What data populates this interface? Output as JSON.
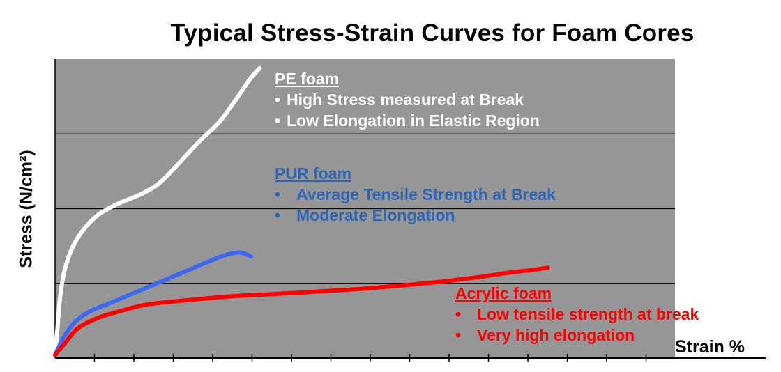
{
  "chart_data": {
    "type": "line",
    "title": "Typical Stress-Strain Curves for Foam Cores",
    "xlabel": "Strain %",
    "ylabel": "Stress (N/cm²)",
    "xlim": [
      0,
      100
    ],
    "ylim": [
      0,
      100
    ],
    "x_ticks": 15,
    "y_gridlines": [
      25,
      50,
      75
    ],
    "plot_background": "#969696",
    "series": [
      {
        "name": "PE foam",
        "color": "#ffffff",
        "points": [
          [
            0,
            1
          ],
          [
            0.3,
            8
          ],
          [
            0.8,
            20
          ],
          [
            1.5,
            29
          ],
          [
            2.8,
            37
          ],
          [
            4.6,
            43
          ],
          [
            7,
            48
          ],
          [
            10,
            51.5
          ],
          [
            13.5,
            54.5
          ],
          [
            16.5,
            58
          ],
          [
            19,
            63
          ],
          [
            21,
            67.5
          ],
          [
            23.5,
            73
          ],
          [
            26.5,
            79
          ],
          [
            29,
            86
          ],
          [
            31.5,
            93.5
          ],
          [
            33,
            97
          ]
        ]
      },
      {
        "name": "PUR foam",
        "color": "#3d69f0",
        "points": [
          [
            0,
            1
          ],
          [
            1.4,
            7
          ],
          [
            3.2,
            12
          ],
          [
            5.5,
            15.5
          ],
          [
            9,
            18.5
          ],
          [
            13,
            22
          ],
          [
            17,
            25.5
          ],
          [
            21,
            29
          ],
          [
            25,
            32.5
          ],
          [
            27.5,
            34.5
          ],
          [
            29.5,
            35.3
          ],
          [
            30.5,
            35
          ],
          [
            31.6,
            34
          ]
        ]
      },
      {
        "name": "Acrylic foam",
        "color": "#ff0000",
        "points": [
          [
            0,
            1
          ],
          [
            1.6,
            5
          ],
          [
            3.7,
            10
          ],
          [
            7,
            13.5
          ],
          [
            11,
            16
          ],
          [
            15,
            18
          ],
          [
            21,
            19.3
          ],
          [
            28,
            20.6
          ],
          [
            35,
            21.4
          ],
          [
            42,
            22.2
          ],
          [
            49,
            23.1
          ],
          [
            56,
            24.3
          ],
          [
            62,
            25.5
          ],
          [
            68,
            27
          ],
          [
            73,
            28.5
          ],
          [
            77,
            29.5
          ],
          [
            79.5,
            30.2
          ]
        ]
      }
    ]
  },
  "annotations": {
    "pe": {
      "head": "PE foam",
      "bullet": "•",
      "lines": [
        "High Stress measured at Break",
        "Low Elongation in Elastic Region"
      ]
    },
    "pur": {
      "head": "PUR foam",
      "bullet": "•",
      "lines": [
        "Average Tensile Strength at Break",
        "Moderate Elongation"
      ]
    },
    "acrylic": {
      "head": "Acrylic foam",
      "bullet": "•",
      "lines": [
        "Low tensile strength at break",
        "Very high elongation"
      ]
    }
  }
}
